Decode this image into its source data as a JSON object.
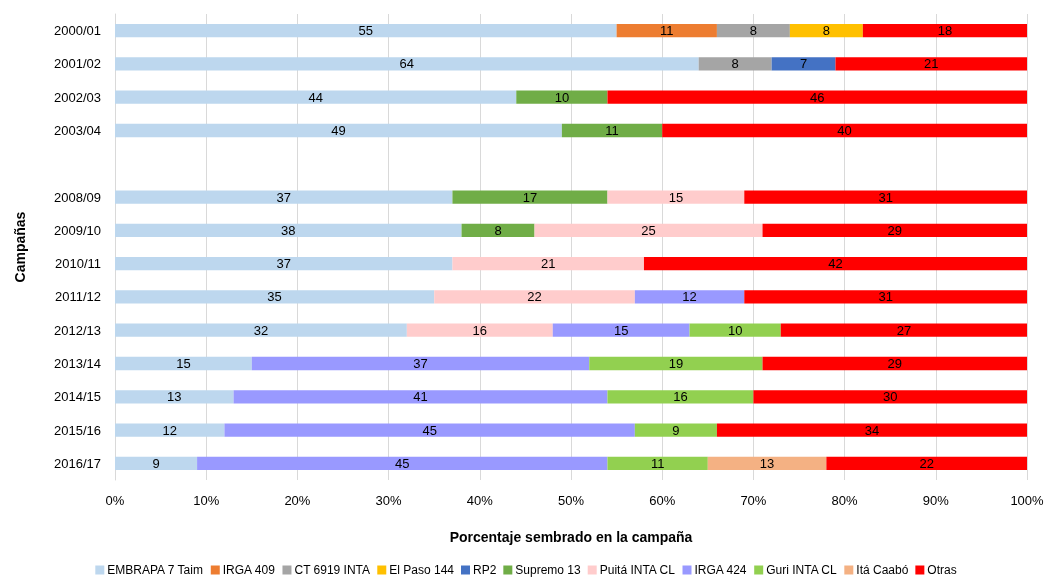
{
  "chart_data": {
    "type": "bar",
    "orientation": "horizontal",
    "stacked": true,
    "data_labels": true,
    "grid": "x",
    "legend": "bottom",
    "xlabel": "Porcentaje sembrado en la campaña",
    "ylabel": "Campañas",
    "categories": [
      "2000/01",
      "2001/02",
      "2002/03",
      "2003/04",
      null,
      "2008/09",
      "2009/10",
      "2010/11",
      "2011/12",
      "2012/13",
      "2013/14",
      "2014/15",
      "2015/16",
      "2016/17"
    ],
    "xlim": [
      0,
      100
    ],
    "xticks": [
      {
        "value": 0,
        "label": "0%"
      },
      {
        "value": 10,
        "label": "10%"
      },
      {
        "value": 20,
        "label": "20%"
      },
      {
        "value": 30,
        "label": "30%"
      },
      {
        "value": 40,
        "label": "40%"
      },
      {
        "value": 50,
        "label": "50%"
      },
      {
        "value": 60,
        "label": "60%"
      },
      {
        "value": 70,
        "label": "70%"
      },
      {
        "value": 80,
        "label": "80%"
      },
      {
        "value": 90,
        "label": "90%"
      },
      {
        "value": 100,
        "label": "100%"
      }
    ],
    "series": [
      {
        "name": "EMBRAPA 7 Taim",
        "color": "#bdd7ee",
        "values": [
          55,
          64,
          44,
          49,
          null,
          37,
          38,
          37,
          35,
          32,
          15,
          13,
          12,
          9
        ]
      },
      {
        "name": "IRGA 409",
        "color": "#ed7d31",
        "values": [
          11,
          null,
          null,
          null,
          null,
          null,
          null,
          null,
          null,
          null,
          null,
          null,
          null,
          null
        ]
      },
      {
        "name": "CT 6919 INTA",
        "color": "#a5a5a5",
        "values": [
          8,
          8,
          null,
          null,
          null,
          null,
          null,
          null,
          null,
          null,
          null,
          null,
          null,
          null
        ]
      },
      {
        "name": "El Paso 144",
        "color": "#ffc000",
        "values": [
          8,
          null,
          null,
          null,
          null,
          null,
          null,
          null,
          null,
          null,
          null,
          null,
          null,
          null
        ]
      },
      {
        "name": "RP2",
        "color": "#4472c4",
        "values": [
          null,
          7,
          null,
          null,
          null,
          null,
          null,
          null,
          null,
          null,
          null,
          null,
          null,
          null
        ]
      },
      {
        "name": "Supremo 13",
        "color": "#70ad47",
        "values": [
          null,
          null,
          10,
          11,
          null,
          17,
          8,
          null,
          null,
          null,
          null,
          null,
          null,
          null
        ]
      },
      {
        "name": "Puitá INTA CL",
        "color": "#ffcccc",
        "values": [
          null,
          null,
          null,
          null,
          null,
          15,
          25,
          21,
          22,
          16,
          null,
          null,
          null,
          null
        ]
      },
      {
        "name": "IRGA 424",
        "color": "#9999ff",
        "values": [
          null,
          null,
          null,
          null,
          null,
          null,
          null,
          null,
          12,
          15,
          37,
          41,
          45,
          45
        ]
      },
      {
        "name": "Guri INTA CL",
        "color": "#92d050",
        "values": [
          null,
          null,
          null,
          null,
          null,
          null,
          null,
          null,
          null,
          10,
          19,
          16,
          9,
          11
        ]
      },
      {
        "name": "Itá Caabó",
        "color": "#f4b183",
        "values": [
          null,
          null,
          null,
          null,
          null,
          null,
          null,
          null,
          null,
          null,
          null,
          null,
          null,
          13
        ]
      },
      {
        "name": "Otras",
        "color": "#ff0000",
        "values": [
          18,
          21,
          46,
          40,
          null,
          31,
          29,
          42,
          31,
          27,
          29,
          30,
          34,
          22
        ]
      }
    ]
  }
}
